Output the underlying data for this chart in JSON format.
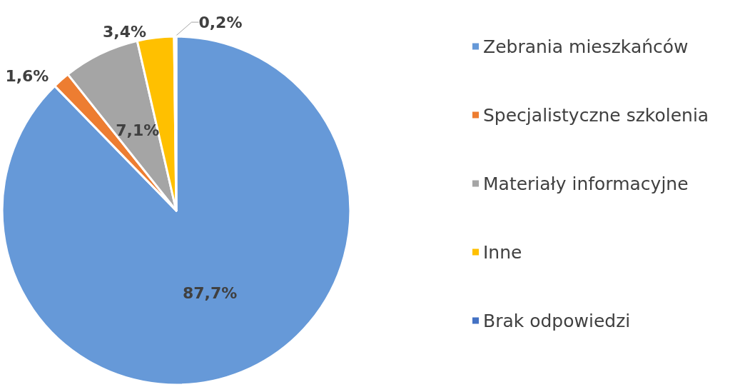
{
  "chart_data": {
    "type": "pie",
    "categories": [
      "Zebrania mieszkańców",
      "Specjalistyczne szkolenia",
      "Materiały informacyjne",
      "Inne",
      "Brak odpowiedzi"
    ],
    "values": [
      87.7,
      1.6,
      7.1,
      3.4,
      0.2
    ],
    "colors": [
      "#6699d8",
      "#ed7d31",
      "#a5a5a5",
      "#ffc000",
      "#4472c4"
    ],
    "value_labels": [
      "87,7%",
      "1,6%",
      "7,1%",
      "3,4%",
      "0,2%"
    ],
    "legend": "right"
  }
}
